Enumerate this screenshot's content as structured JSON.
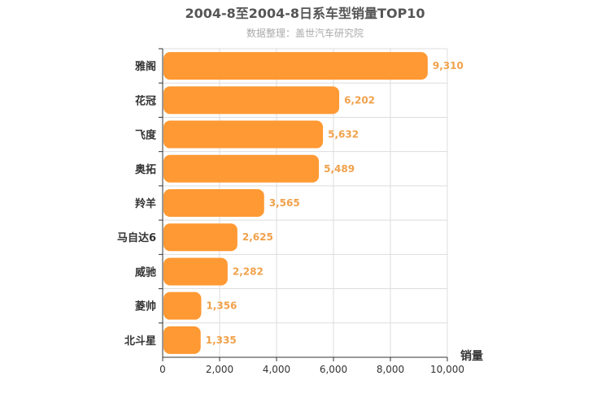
{
  "chart_data": {
    "type": "bar",
    "orientation": "horizontal",
    "title": "2004-8至2004-8日系车型销量TOP10",
    "subtitle": "数据整理：盖世汽车研究院",
    "xlabel": "销量",
    "categories": [
      "雅阁",
      "花冠",
      "飞度",
      "奥拓",
      "羚羊",
      "马自达6",
      "威驰",
      "菱帅",
      "北斗星"
    ],
    "values": [
      9310,
      6202,
      5632,
      5489,
      3565,
      2625,
      2282,
      1356,
      1335
    ],
    "value_labels": [
      "9,310",
      "6,202",
      "5,632",
      "5,489",
      "3,565",
      "2,625",
      "2,282",
      "1,356",
      "1,335"
    ],
    "xlim": [
      0,
      10000
    ],
    "xticks": [
      0,
      2000,
      4000,
      6000,
      8000,
      10000
    ],
    "xtick_labels": [
      "0",
      "2,000",
      "4,000",
      "6,000",
      "8,000",
      "10,000"
    ],
    "grid": true,
    "legend": "none",
    "bar_color": "#ff9933"
  }
}
